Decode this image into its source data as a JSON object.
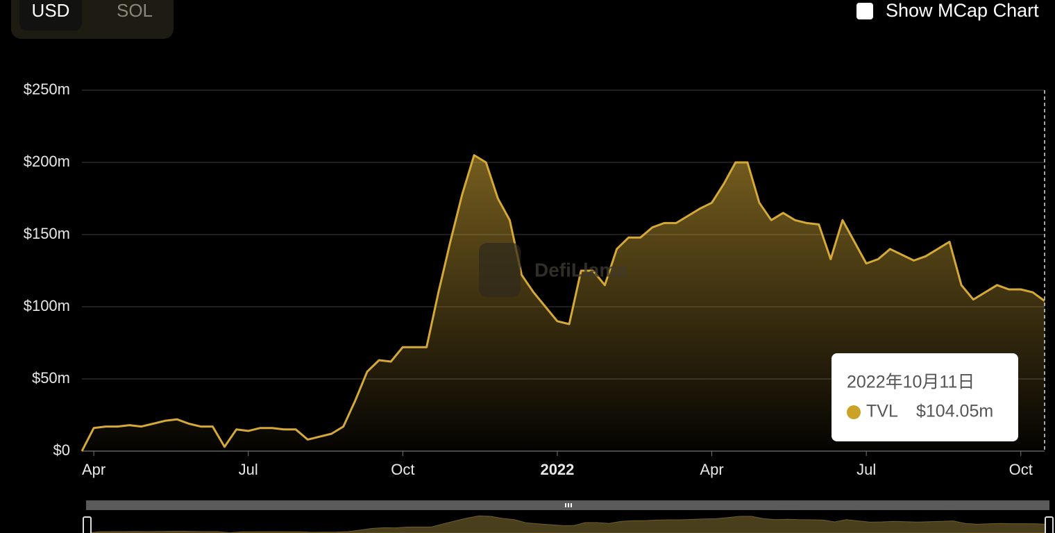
{
  "controls": {
    "currency": [
      "USD",
      "SOL"
    ],
    "checkbox": "Show MCap Chart"
  },
  "chart_data": {
    "type": "area",
    "watermark": "DefiLlama",
    "categories": [
      null,
      "Apr",
      null,
      null,
      null,
      null,
      null,
      null,
      null,
      null,
      null,
      null,
      null,
      null,
      "Jul",
      null,
      null,
      null,
      null,
      null,
      null,
      null,
      null,
      null,
      null,
      null,
      null,
      "Oct",
      null,
      null,
      null,
      null,
      null,
      null,
      null,
      null,
      null,
      null,
      null,
      null,
      "2022",
      null,
      null,
      null,
      null,
      null,
      null,
      null,
      null,
      null,
      null,
      null,
      null,
      "Apr",
      null,
      null,
      null,
      null,
      null,
      null,
      null,
      null,
      null,
      null,
      null,
      null,
      "Jul",
      null,
      null,
      null,
      null,
      null,
      null,
      null,
      null,
      null,
      null,
      null,
      null,
      "Oct",
      null,
      null
    ],
    "series": [
      {
        "name": "TVL",
        "color": "#d4a937",
        "values": [
          0,
          16,
          17,
          17,
          18,
          17,
          19,
          21,
          22,
          19,
          17,
          17,
          3,
          15,
          14,
          16,
          16,
          15,
          15,
          8,
          10,
          12,
          17,
          35,
          55,
          63,
          62,
          72,
          72,
          72,
          110,
          145,
          178,
          205,
          200,
          175,
          160,
          122,
          110,
          100,
          90,
          88,
          125,
          125,
          115,
          140,
          148,
          148,
          155,
          158,
          158,
          163,
          168,
          172,
          185,
          200,
          200,
          172,
          160,
          165,
          160,
          158,
          157,
          133,
          160,
          145,
          130,
          133,
          140,
          136,
          132,
          135,
          140,
          145,
          115,
          105,
          110,
          115,
          112,
          112,
          110,
          104.05
        ]
      }
    ],
    "ylim": [
      0,
      250
    ],
    "yticks": [
      {
        "value": 0,
        "label": "$0"
      },
      {
        "value": 50,
        "label": "$50m"
      },
      {
        "value": 100,
        "label": "$100m"
      },
      {
        "value": 150,
        "label": "$150m"
      },
      {
        "value": 200,
        "label": "$200m"
      },
      {
        "value": 250,
        "label": "$250m"
      }
    ],
    "grid": true,
    "tooltip": {
      "date": "2022年10月11日",
      "value_label": "$104.05m"
    }
  }
}
